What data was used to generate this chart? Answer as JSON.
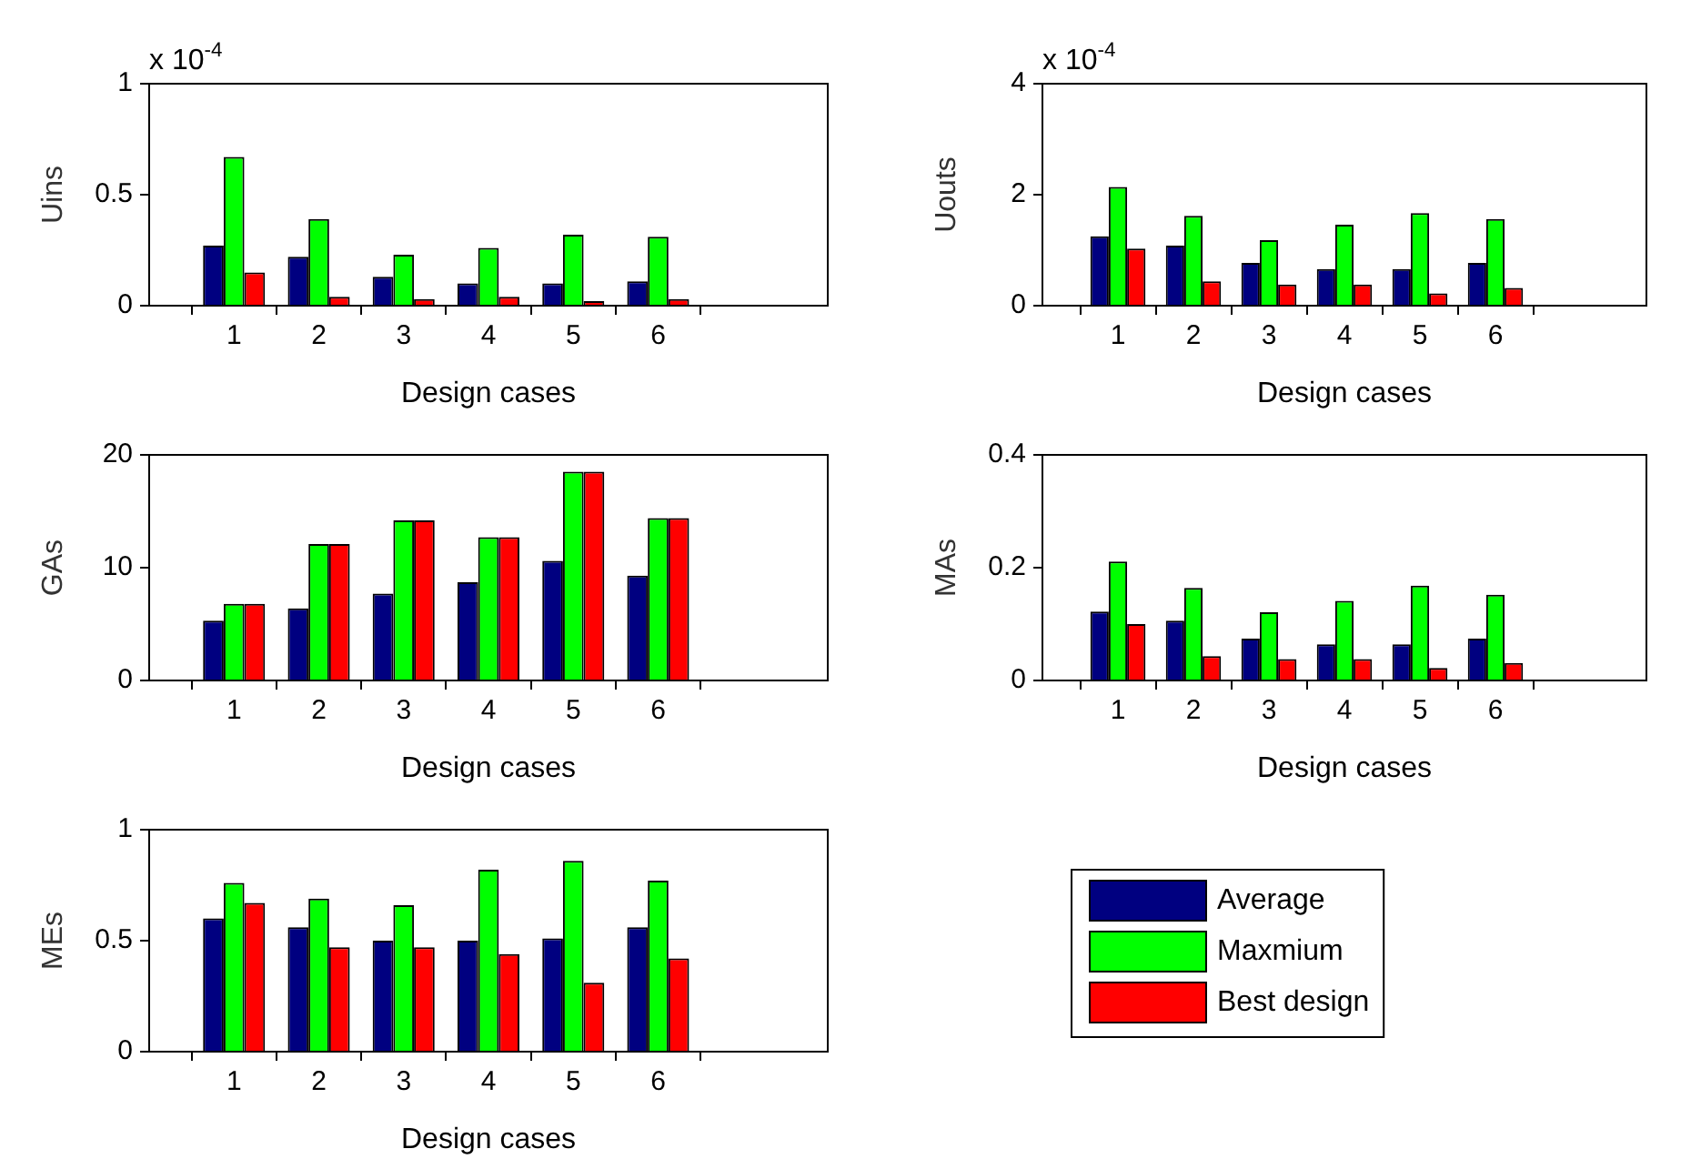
{
  "chart_data": [
    {
      "type": "bar",
      "ylabel": "Uins",
      "xlabel": "Design cases",
      "annotations": [
        "x 10$^{-4}$"
      ],
      "x": [
        1,
        2,
        3,
        4,
        5,
        6
      ],
      "xlim": [
        0,
        8
      ],
      "xticks": [
        1,
        2,
        3,
        4,
        5,
        6
      ],
      "ylim": [
        0,
        1
      ],
      "yticks": [
        0,
        0.5,
        1
      ],
      "grid": false,
      "legend": false,
      "series": [
        {
          "color": "#000080",
          "values": [
            0.27,
            0.22,
            0.13,
            0.1,
            0.1,
            0.11
          ]
        },
        {
          "color": "#00ff00",
          "values": [
            0.67,
            0.39,
            0.23,
            0.26,
            0.32,
            0.31
          ]
        },
        {
          "color": "#ff0000",
          "values": [
            0.15,
            0.04,
            0.03,
            0.04,
            0.02,
            0.03
          ]
        }
      ]
    },
    {
      "type": "bar",
      "ylabel": "Uouts",
      "xlabel": "Design cases",
      "annotations": [
        "x 10$^{-4}$"
      ],
      "x": [
        1,
        2,
        3,
        4,
        5,
        6
      ],
      "xlim": [
        0,
        8
      ],
      "xticks": [
        1,
        2,
        3,
        4,
        5,
        6
      ],
      "ylim": [
        0,
        4
      ],
      "yticks": [
        0,
        2,
        4
      ],
      "grid": false,
      "legend": false,
      "series": [
        {
          "color": "#000080",
          "values": [
            1.25,
            1.08,
            0.77,
            0.66,
            0.66,
            0.77
          ]
        },
        {
          "color": "#00ff00",
          "values": [
            2.14,
            1.62,
            1.18,
            1.46,
            1.67,
            1.56
          ]
        },
        {
          "color": "#ff0000",
          "values": [
            1.03,
            0.44,
            0.38,
            0.38,
            0.22,
            0.32
          ]
        }
      ]
    },
    {
      "type": "bar",
      "ylabel": "GAs",
      "xlabel": "Design cases",
      "x": [
        1,
        2,
        3,
        4,
        5,
        6
      ],
      "xlim": [
        0,
        8
      ],
      "xticks": [
        1,
        2,
        3,
        4,
        5,
        6
      ],
      "ylim": [
        0,
        20
      ],
      "yticks": [
        0,
        10,
        20
      ],
      "grid": false,
      "legend": false,
      "series": [
        {
          "color": "#000080",
          "values": [
            5.3,
            6.4,
            7.7,
            8.7,
            10.6,
            9.3
          ]
        },
        {
          "color": "#00ff00",
          "values": [
            6.8,
            12.1,
            14.2,
            12.7,
            18.5,
            14.4
          ]
        },
        {
          "color": "#ff0000",
          "values": [
            6.8,
            12.1,
            14.2,
            12.7,
            18.5,
            14.4
          ]
        }
      ]
    },
    {
      "type": "bar",
      "ylabel": "MAs",
      "xlabel": "Design cases",
      "x": [
        1,
        2,
        3,
        4,
        5,
        6
      ],
      "xlim": [
        0,
        8
      ],
      "xticks": [
        1,
        2,
        3,
        4,
        5,
        6
      ],
      "ylim": [
        0,
        0.4
      ],
      "yticks": [
        0,
        0.2,
        0.4
      ],
      "grid": false,
      "legend": false,
      "series": [
        {
          "color": "#000080",
          "values": [
            0.122,
            0.106,
            0.074,
            0.064,
            0.064,
            0.074
          ]
        },
        {
          "color": "#00ff00",
          "values": [
            0.211,
            0.164,
            0.121,
            0.141,
            0.168,
            0.152
          ]
        },
        {
          "color": "#ff0000",
          "values": [
            0.1,
            0.043,
            0.038,
            0.038,
            0.022,
            0.031
          ]
        }
      ]
    },
    {
      "type": "bar",
      "ylabel": "MEs",
      "xlabel": "Design cases",
      "x": [
        1,
        2,
        3,
        4,
        5,
        6
      ],
      "xlim": [
        0,
        8
      ],
      "xticks": [
        1,
        2,
        3,
        4,
        5,
        6
      ],
      "ylim": [
        0,
        1
      ],
      "yticks": [
        0,
        0.5,
        1
      ],
      "grid": false,
      "legend": "right",
      "series": [
        {
          "name": "Average",
          "color": "#000080",
          "values": [
            0.6,
            0.56,
            0.5,
            0.5,
            0.51,
            0.56
          ]
        },
        {
          "name": "Maxmium",
          "color": "#00ff00",
          "values": [
            0.76,
            0.69,
            0.66,
            0.82,
            0.86,
            0.77
          ]
        },
        {
          "name": "Best design",
          "color": "#ff0000",
          "values": [
            0.67,
            0.47,
            0.47,
            0.44,
            0.31,
            0.42
          ]
        }
      ]
    }
  ]
}
